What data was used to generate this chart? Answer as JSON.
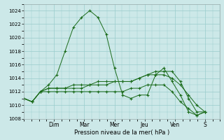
{
  "background_color": "#cce8e8",
  "grid_color": "#99cccc",
  "line_color": "#1a6b1a",
  "title": "Pression niveau de la mer( hPa )",
  "ylim": [
    1008,
    1025
  ],
  "yticks": [
    1008,
    1010,
    1012,
    1014,
    1016,
    1018,
    1020,
    1022,
    1024
  ],
  "day_labels": [
    "Dim",
    "Mar",
    "Mer",
    "Jeu",
    "Ven",
    "S"
  ],
  "day_positions": [
    2,
    4,
    6,
    8,
    10,
    12
  ],
  "xlim": [
    0,
    13
  ],
  "series": [
    [
      1011.0,
      1010.5,
      1012.0,
      1013.0,
      1014.5,
      1018.0,
      1021.5,
      1023.0,
      1024.0,
      1023.0,
      1020.5,
      1015.5,
      1011.5,
      1011.0,
      1011.5,
      1011.5,
      1014.5,
      1015.5,
      1013.5,
      1011.5,
      1009.0,
      1008.5,
      1009.0
    ],
    [
      1011.0,
      1010.5,
      1012.0,
      1012.5,
      1012.5,
      1012.5,
      1012.5,
      1012.5,
      1013.0,
      1013.0,
      1013.0,
      1013.5,
      1013.5,
      1013.5,
      1014.0,
      1014.5,
      1014.5,
      1014.5,
      1014.0,
      1013.0,
      1011.5,
      1010.0,
      1009.0
    ],
    [
      1011.0,
      1010.5,
      1012.0,
      1012.5,
      1012.5,
      1012.5,
      1013.0,
      1013.0,
      1013.0,
      1013.5,
      1013.5,
      1013.5,
      1013.5,
      1013.5,
      1014.0,
      1014.5,
      1015.0,
      1015.0,
      1015.0,
      1013.5,
      1011.0,
      1009.0,
      1009.0
    ],
    [
      1011.0,
      1010.5,
      1012.0,
      1012.0,
      1012.0,
      1012.0,
      1012.0,
      1012.0,
      1012.0,
      1012.0,
      1012.0,
      1012.0,
      1012.0,
      1012.5,
      1012.5,
      1013.0,
      1013.0,
      1013.0,
      1012.0,
      1010.5,
      1009.5,
      1008.5,
      1009.0
    ]
  ]
}
